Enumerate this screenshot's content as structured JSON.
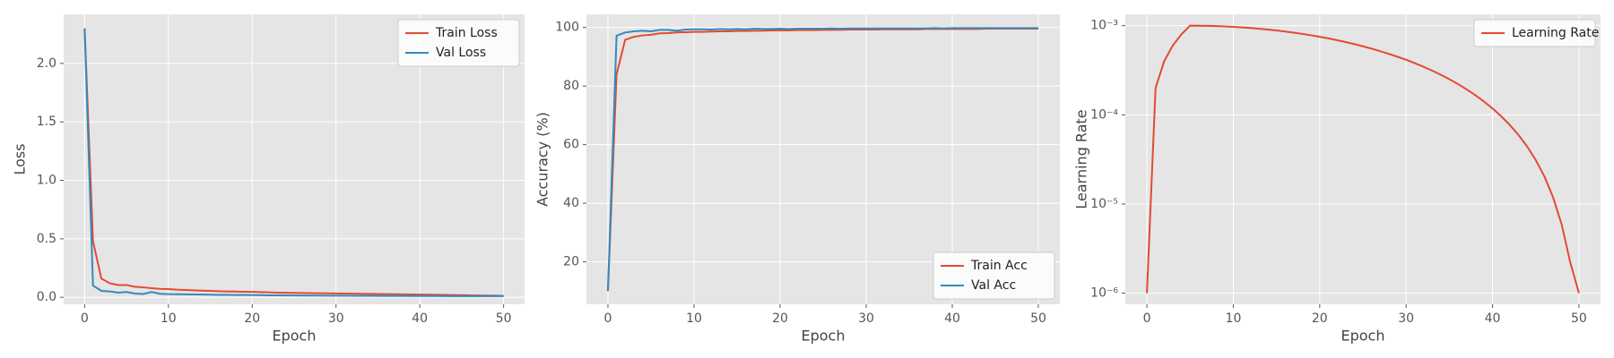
{
  "chart_data": [
    {
      "type": "line",
      "xlabel": "Epoch",
      "ylabel": "Loss",
      "x": [
        0,
        1,
        2,
        3,
        4,
        5,
        6,
        7,
        8,
        9,
        10,
        11,
        12,
        13,
        14,
        15,
        16,
        17,
        18,
        19,
        20,
        21,
        22,
        23,
        24,
        25,
        26,
        27,
        28,
        29,
        30,
        31,
        32,
        33,
        34,
        35,
        36,
        37,
        38,
        39,
        40,
        41,
        42,
        43,
        44,
        45,
        46,
        47,
        48,
        49,
        50
      ],
      "series": [
        {
          "name": "Train Loss",
          "color": "#E24A33",
          "values": [
            2.3,
            0.48,
            0.16,
            0.12,
            0.105,
            0.105,
            0.09,
            0.085,
            0.078,
            0.072,
            0.07,
            0.065,
            0.062,
            0.06,
            0.057,
            0.055,
            0.052,
            0.05,
            0.049,
            0.047,
            0.046,
            0.044,
            0.042,
            0.04,
            0.039,
            0.038,
            0.037,
            0.036,
            0.035,
            0.034,
            0.033,
            0.032,
            0.031,
            0.03,
            0.029,
            0.028,
            0.027,
            0.026,
            0.025,
            0.024,
            0.023,
            0.022,
            0.021,
            0.02,
            0.019,
            0.018,
            0.017,
            0.016,
            0.015,
            0.014,
            0.013
          ]
        },
        {
          "name": "Val Loss",
          "color": "#348ABD",
          "values": [
            2.3,
            0.1,
            0.055,
            0.05,
            0.04,
            0.045,
            0.032,
            0.028,
            0.045,
            0.03,
            0.027,
            0.026,
            0.025,
            0.024,
            0.023,
            0.022,
            0.02,
            0.021,
            0.019,
            0.02,
            0.018,
            0.018,
            0.017,
            0.017,
            0.016,
            0.016,
            0.015,
            0.015,
            0.015,
            0.014,
            0.014,
            0.014,
            0.013,
            0.013,
            0.013,
            0.012,
            0.012,
            0.012,
            0.012,
            0.011,
            0.011,
            0.011,
            0.011,
            0.01,
            0.01,
            0.01,
            0.01,
            0.01,
            0.01,
            0.01,
            0.01
          ]
        }
      ],
      "xlim": [
        -2.5,
        52.5
      ],
      "xticks": [
        0,
        10,
        20,
        30,
        40,
        50
      ],
      "ylim": [
        -0.06,
        2.42
      ],
      "yticks": [
        {
          "value": 0,
          "label": "0.0"
        },
        {
          "value": 0.5,
          "label": "0.5"
        },
        {
          "value": 1,
          "label": "1.0"
        },
        {
          "value": 1.5,
          "label": "1.5"
        },
        {
          "value": 2,
          "label": "2.0"
        }
      ],
      "grid": true,
      "legend": "upper right"
    },
    {
      "type": "line",
      "xlabel": "Epoch",
      "ylabel": "Accuracy (%)",
      "x": [
        0,
        1,
        2,
        3,
        4,
        5,
        6,
        7,
        8,
        9,
        10,
        11,
        12,
        13,
        14,
        15,
        16,
        17,
        18,
        19,
        20,
        21,
        22,
        23,
        24,
        25,
        26,
        27,
        28,
        29,
        30,
        31,
        32,
        33,
        34,
        35,
        36,
        37,
        38,
        39,
        40,
        41,
        42,
        43,
        44,
        45,
        46,
        47,
        48,
        49,
        50
      ],
      "series": [
        {
          "name": "Train Acc",
          "color": "#E24A33",
          "values": [
            10,
            84,
            95.8,
            96.8,
            97.3,
            97.5,
            98,
            98.1,
            98.3,
            98.4,
            98.5,
            98.5,
            98.6,
            98.7,
            98.7,
            98.8,
            98.8,
            98.9,
            98.9,
            99,
            99,
            99,
            99.1,
            99.1,
            99.1,
            99.2,
            99.2,
            99.2,
            99.3,
            99.3,
            99.3,
            99.3,
            99.4,
            99.4,
            99.4,
            99.4,
            99.4,
            99.5,
            99.5,
            99.5,
            99.5,
            99.5,
            99.5,
            99.5,
            99.6,
            99.6,
            99.6,
            99.6,
            99.6,
            99.6,
            99.6
          ]
        },
        {
          "name": "Val Acc",
          "color": "#348ABD",
          "values": [
            10,
            97.2,
            98.3,
            98.7,
            98.9,
            98.7,
            99.2,
            99.2,
            98.9,
            99.3,
            99.4,
            99.4,
            99.3,
            99.5,
            99.4,
            99.5,
            99.4,
            99.6,
            99.5,
            99.5,
            99.6,
            99.5,
            99.6,
            99.6,
            99.6,
            99.6,
            99.7,
            99.6,
            99.7,
            99.7,
            99.7,
            99.7,
            99.7,
            99.7,
            99.7,
            99.7,
            99.7,
            99.7,
            99.8,
            99.7,
            99.8,
            99.8,
            99.8,
            99.8,
            99.8,
            99.8,
            99.8,
            99.8,
            99.8,
            99.8,
            99.8
          ]
        }
      ],
      "xlim": [
        -2.5,
        52.5
      ],
      "xticks": [
        0,
        10,
        20,
        30,
        40,
        50
      ],
      "ylim": [
        5.5,
        104.5
      ],
      "yticks": [
        20,
        40,
        60,
        80,
        100
      ],
      "grid": true,
      "legend": "lower right"
    },
    {
      "type": "line",
      "xlabel": "Epoch",
      "ylabel": "Learning Rate",
      "log_y": true,
      "x": [
        0,
        1,
        2,
        3,
        4,
        5,
        6,
        7,
        8,
        9,
        10,
        11,
        12,
        13,
        14,
        15,
        16,
        17,
        18,
        19,
        20,
        21,
        22,
        23,
        24,
        25,
        26,
        27,
        28,
        29,
        30,
        31,
        32,
        33,
        34,
        35,
        36,
        37,
        38,
        39,
        40,
        41,
        42,
        43,
        44,
        45,
        46,
        47,
        48,
        49,
        50
      ],
      "series": [
        {
          "name": "Learning Rate",
          "color": "#E24A33",
          "values": [
            1e-06,
            0.0002,
            0.0004,
            0.0006,
            0.0008,
            0.001,
            0.0009988,
            0.0009951,
            0.0009891,
            0.0009807,
            0.0009699,
            0.0009569,
            0.0009415,
            0.0009241,
            0.0009046,
            0.0008831,
            0.0008598,
            0.0008347,
            0.000808,
            0.0007798,
            0.0007502,
            0.0007193,
            0.0006874,
            0.0006546,
            0.0006211,
            0.0005869,
            0.0005527,
            0.0005175,
            0.000483,
            0.0004483,
            0.0004138,
            0.0003796,
            0.0003461,
            0.0003134,
            0.0002815,
            0.0002507,
            0.0002212,
            0.000193,
            0.0001663,
            0.0001412,
            0.0001179,
            9.64e-05,
            7.69e-05,
            5.95e-05,
            4.42e-05,
            3.11e-05,
            2.04e-05,
            1.19e-05,
            5.9e-06,
            2.2e-06,
            1e-06
          ]
        }
      ],
      "xlim": [
        -2.5,
        52.5
      ],
      "xticks": [
        0,
        10,
        20,
        30,
        40,
        50
      ],
      "ylim": [
        7.5e-07,
        0.00134
      ],
      "yticks": [
        {
          "value": 1e-06,
          "label": "10⁻⁶"
        },
        {
          "value": 1e-05,
          "label": "10⁻⁵"
        },
        {
          "value": 0.0001,
          "label": "10⁻⁴"
        },
        {
          "value": 0.001,
          "label": "10⁻³"
        }
      ],
      "grid": true,
      "legend": "upper right"
    }
  ]
}
